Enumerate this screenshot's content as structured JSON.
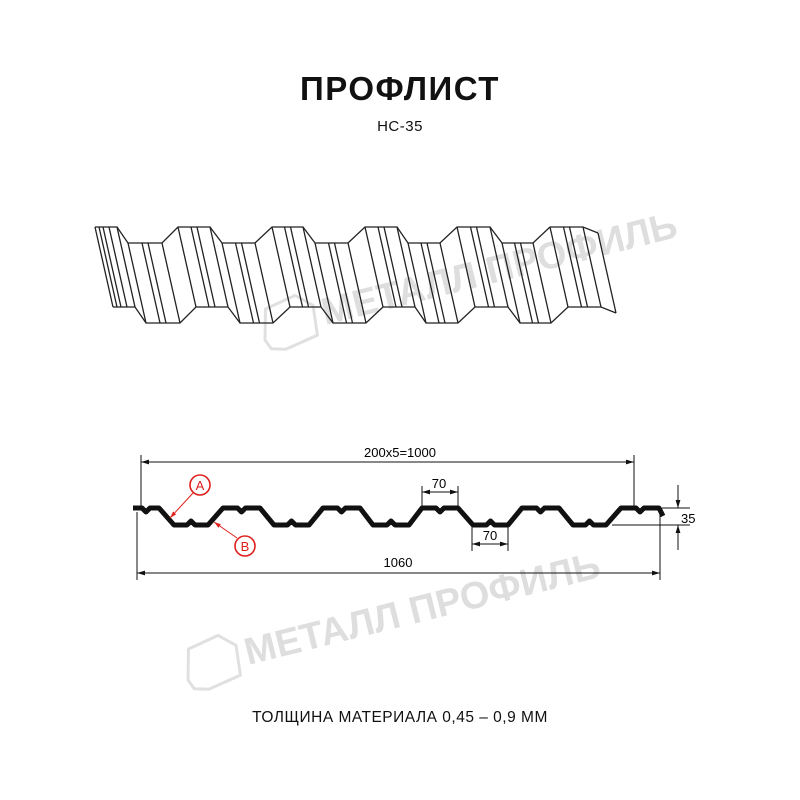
{
  "title": "ПРОФЛИСТ",
  "model": "НС-35",
  "thickness_note": "ТОЛЩИНА МАТЕРИАЛА 0,45 – 0,9 ММ",
  "watermark": "МЕТАЛЛ ПРОФИЛЬ",
  "dimensions": {
    "useful_width": "200x5=1000",
    "total_width": "1060",
    "crest_width": "70",
    "trough_width": "70",
    "height": "35"
  },
  "callouts": {
    "a": "A",
    "b": "B"
  },
  "colors": {
    "profile": "#111111",
    "callout": "#e0201c",
    "watermark": "#d0d0d0"
  }
}
